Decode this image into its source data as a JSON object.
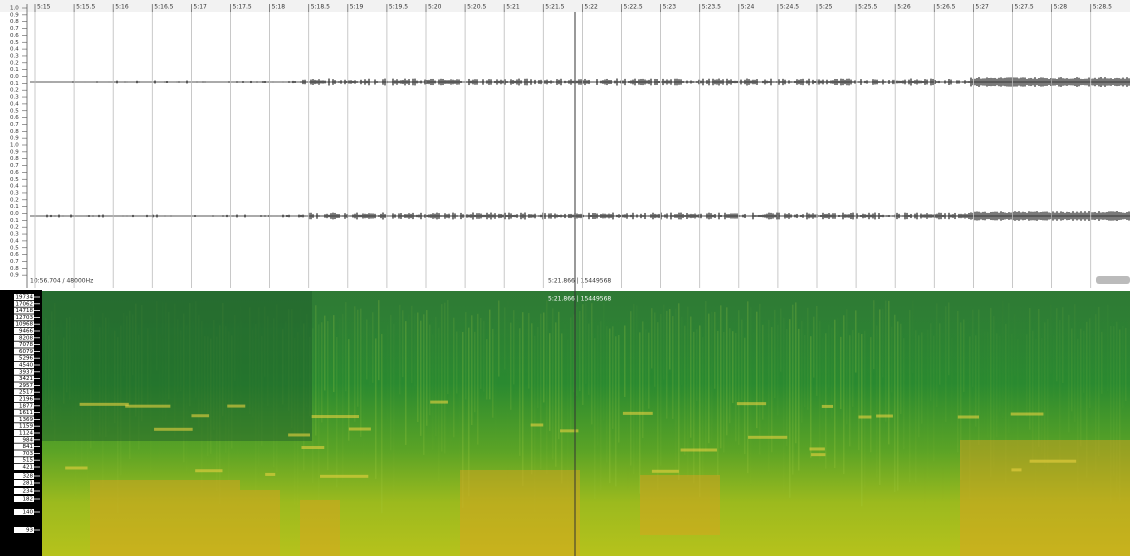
{
  "ruler": {
    "labels": [
      "5:15",
      "5:15.5",
      "5:16",
      "5:16.5",
      "5:17",
      "5:17.5",
      "5:18",
      "5:18.5",
      "5:19",
      "5:19.5",
      "5:20",
      "5:20.5",
      "5:21",
      "5:21.5",
      "5:22",
      "5:22.5",
      "5:23",
      "5:23.5",
      "5:24",
      "5:24.5",
      "5:25",
      "5:25.5",
      "5:26",
      "5:26.5",
      "5:27",
      "5:27.5",
      "5:28",
      "5:28.5"
    ]
  },
  "amplitude_scale": {
    "labels": [
      "1.0",
      "0.9",
      "0.8",
      "0.7",
      "0.6",
      "0.5",
      "0.4",
      "0.3",
      "0.2",
      "0.1",
      "0.0",
      "0.1",
      "0.2",
      "0.3",
      "0.4",
      "0.5",
      "0.6",
      "0.7",
      "0.8",
      "0.9",
      "1.0",
      "0.9",
      "0.8",
      "0.7",
      "0.6",
      "0.5",
      "0.4",
      "0.3",
      "0.2",
      "0.1",
      "0.0",
      "0.1",
      "0.2",
      "0.3",
      "0.4",
      "0.5",
      "0.6",
      "0.7",
      "0.8",
      "0.9"
    ]
  },
  "waveform": {
    "info": "10:56.704 / 48000Hz",
    "cursor": "5:21.866 | 15449568"
  },
  "spectrogram": {
    "cursor": "5:21.866 | 15449568",
    "frequency_labels": [
      "19734",
      "17062",
      "14718",
      "12703",
      "10968",
      "9466",
      "8208",
      "7078",
      "6079",
      "5296",
      "4540",
      "3937",
      "3421",
      "2957",
      "2517",
      "2196",
      "1877",
      "1611",
      "1369",
      "1159",
      "1124",
      "984",
      "841",
      "703",
      "515",
      "421",
      "328",
      "281",
      "234",
      "182",
      "140",
      "93"
    ]
  }
}
